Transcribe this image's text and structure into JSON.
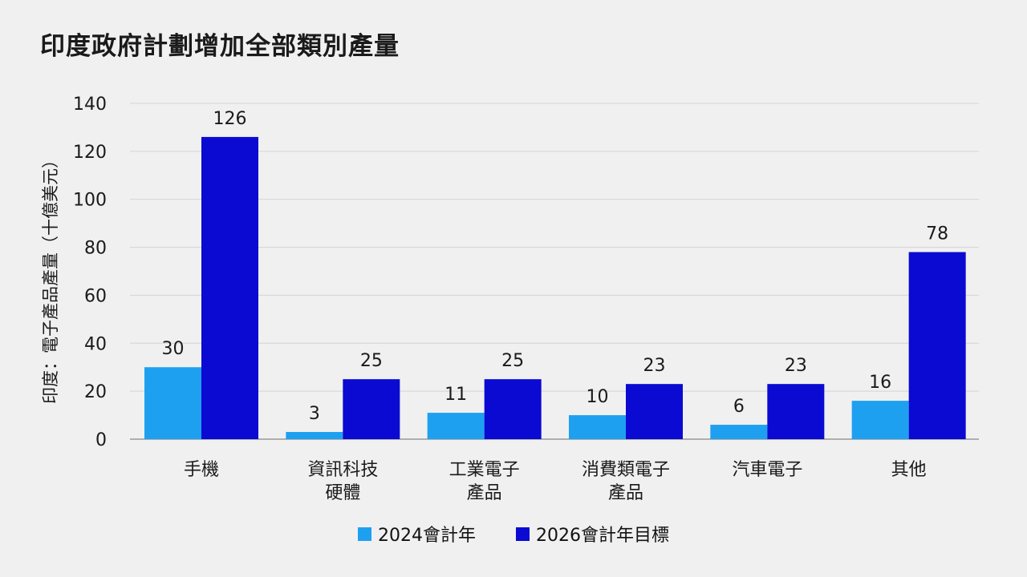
{
  "chart_data": {
    "type": "bar",
    "title": "印度政府計劃增加全部類別產量",
    "ylabel": "印度：電子產品產量（十億美元）",
    "xlabel": "",
    "ylim": [
      0,
      140
    ],
    "yticks": [
      0,
      20,
      40,
      60,
      80,
      100,
      120,
      140
    ],
    "grid": true,
    "legend_position": "bottom-center",
    "categories": [
      [
        "手機"
      ],
      [
        "資訊科技",
        "硬體"
      ],
      [
        "工業電子",
        "產品"
      ],
      [
        "消費類電子",
        "產品"
      ],
      [
        "汽車電子"
      ],
      [
        "其他"
      ]
    ],
    "series": [
      {
        "name": "2024會計年",
        "color": "#1ea0f0",
        "values": [
          30,
          3,
          11,
          10,
          6,
          16
        ]
      },
      {
        "name": "2026會計年目標",
        "color": "#0a0ad2",
        "values": [
          126,
          25,
          25,
          23,
          23,
          78
        ]
      }
    ]
  },
  "colors": {
    "background": "#f0f0f0",
    "gridline": "#d4d4d4",
    "axis": "#888888",
    "text": "#1a1a1a"
  }
}
